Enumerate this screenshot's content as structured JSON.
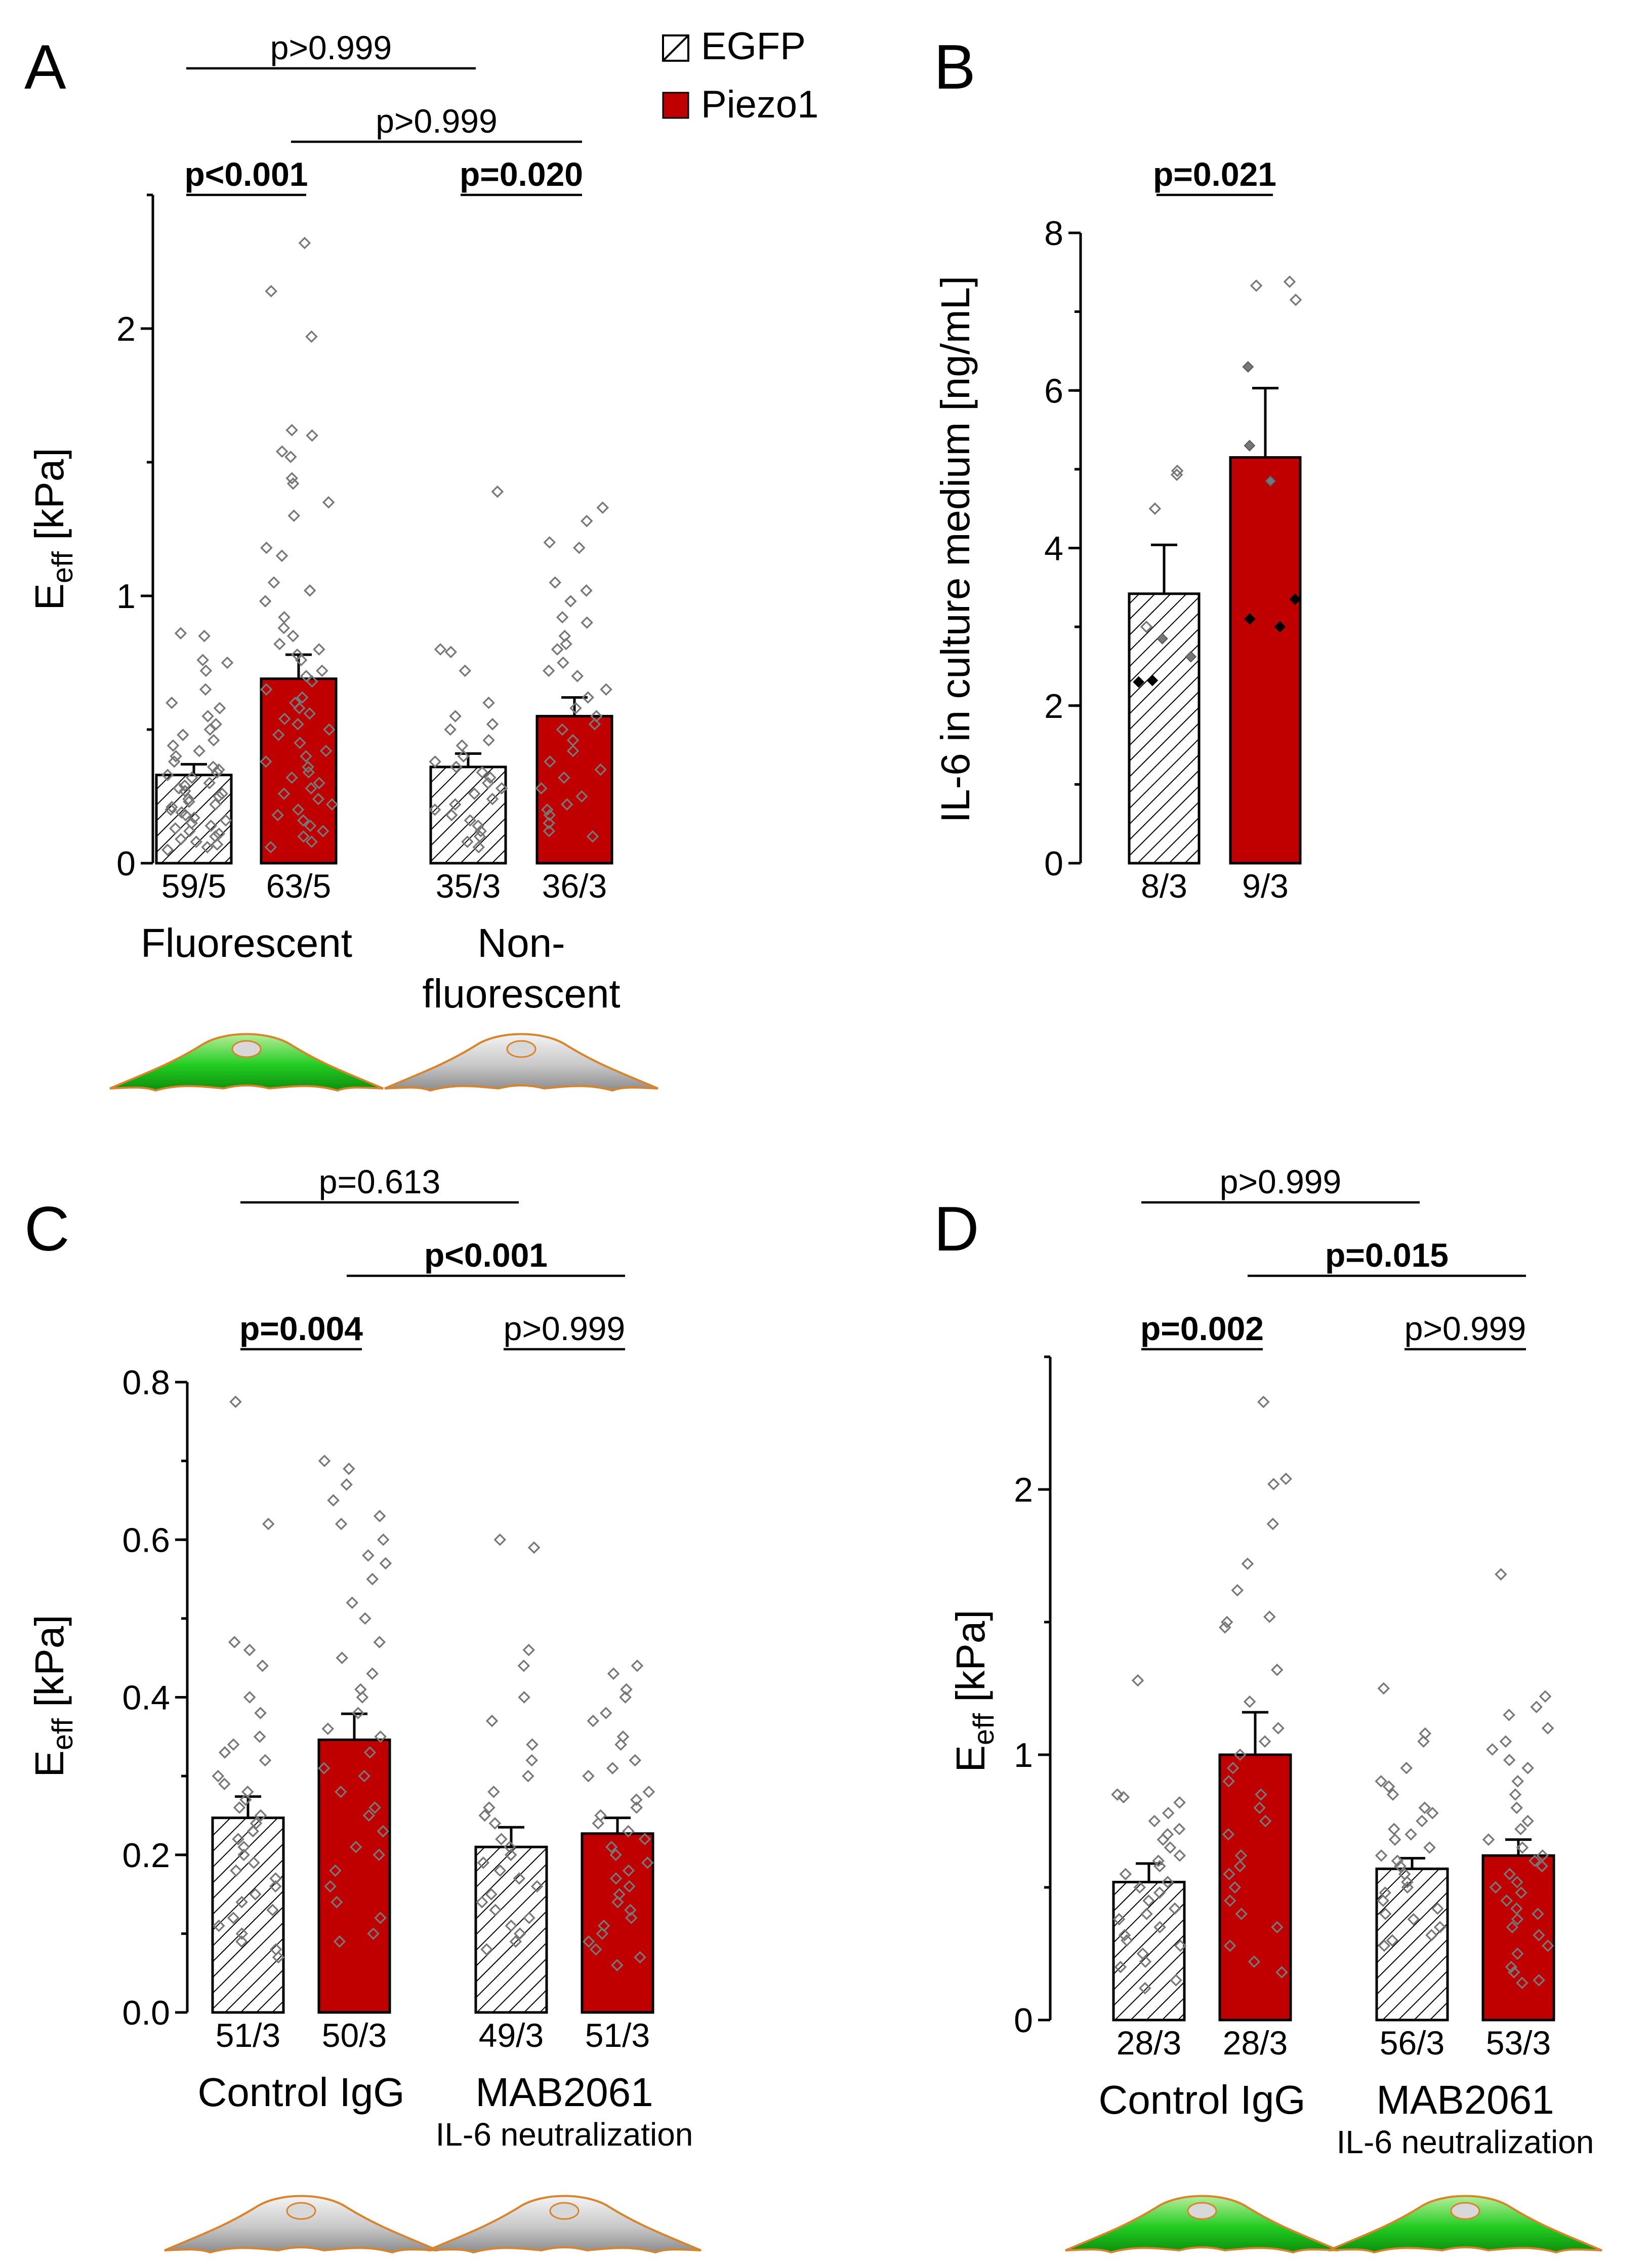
{
  "legend": {
    "egfp_label": "EGFP",
    "piezo_label": "Piezo1",
    "egfp_color": "#ffffff",
    "piezo_color": "#c00000"
  },
  "chart_data": [
    {
      "panel": "A",
      "type": "bar",
      "ylabel": "E",
      "ylabel_sub": "eff",
      "ylabel_unit": " [kPa]",
      "ylim": [
        0,
        2.5
      ],
      "yticks": [
        "0",
        "1",
        "2"
      ],
      "yticks_values": [
        0,
        1,
        2
      ],
      "minor_step": 0.5,
      "groups": [
        {
          "label_lines": [
            "Fluorescent"
          ],
          "cell_icon": "green-cell-icon"
        },
        {
          "label_lines": [
            "Non-",
            "fluorescent"
          ],
          "cell_icon": "grey-cell-icon"
        }
      ],
      "bars": [
        {
          "group": 0,
          "series": "EGFP",
          "value": 0.33,
          "sem": 0.04,
          "n_label": "59/5",
          "points": [
            0.85,
            0.86,
            0.76,
            0.75,
            0.72,
            0.65,
            0.6,
            0.58,
            0.55,
            0.52,
            0.5,
            0.48,
            0.46,
            0.44,
            0.42,
            0.4,
            0.38,
            0.36,
            0.35,
            0.34,
            0.33,
            0.32,
            0.3,
            0.29,
            0.28,
            0.27,
            0.26,
            0.25,
            0.24,
            0.23,
            0.22,
            0.21,
            0.2,
            0.19,
            0.18,
            0.17,
            0.16,
            0.15,
            0.14,
            0.13,
            0.12,
            0.11,
            0.1,
            0.09,
            0.08,
            0.07,
            0.06,
            0.05
          ]
        },
        {
          "group": 0,
          "series": "Piezo1",
          "value": 0.69,
          "sem": 0.09,
          "n_label": "63/5",
          "points": [
            2.32,
            2.14,
            1.97,
            1.62,
            1.6,
            1.54,
            1.52,
            1.44,
            1.42,
            1.35,
            1.3,
            1.18,
            1.15,
            1.05,
            1.02,
            0.98,
            0.92,
            0.88,
            0.85,
            0.82,
            0.8,
            0.78,
            0.76,
            0.72,
            0.7,
            0.68,
            0.65,
            0.62,
            0.6,
            0.58,
            0.56,
            0.54,
            0.52,
            0.5,
            0.48,
            0.45,
            0.42,
            0.4,
            0.38,
            0.36,
            0.34,
            0.32,
            0.3,
            0.28,
            0.26,
            0.24,
            0.22,
            0.2,
            0.18,
            0.16,
            0.14,
            0.12,
            0.1,
            0.08,
            0.06
          ]
        },
        {
          "group": 1,
          "series": "EGFP",
          "value": 0.36,
          "sem": 0.05,
          "n_label": "35/3",
          "points": [
            1.39,
            0.8,
            0.79,
            0.72,
            0.6,
            0.55,
            0.52,
            0.5,
            0.46,
            0.44,
            0.4,
            0.38,
            0.36,
            0.34,
            0.32,
            0.3,
            0.28,
            0.26,
            0.24,
            0.22,
            0.2,
            0.18,
            0.16,
            0.14,
            0.12,
            0.1,
            0.08,
            0.06
          ]
        },
        {
          "group": 1,
          "series": "Piezo1",
          "value": 0.55,
          "sem": 0.07,
          "n_label": "36/3",
          "points": [
            1.33,
            1.28,
            1.2,
            1.18,
            1.05,
            1.02,
            0.98,
            0.92,
            0.9,
            0.85,
            0.82,
            0.8,
            0.75,
            0.72,
            0.7,
            0.65,
            0.62,
            0.58,
            0.55,
            0.52,
            0.5,
            0.46,
            0.42,
            0.38,
            0.35,
            0.32,
            0.28,
            0.25,
            0.22,
            0.2,
            0.18,
            0.15,
            0.12,
            0.1
          ]
        }
      ],
      "comparisons": [
        {
          "text": "p<0.001",
          "bold": true,
          "from": 0,
          "to": 1,
          "level": 0
        },
        {
          "text": "p=0.020",
          "bold": true,
          "from": 2,
          "to": 3,
          "level": 0
        },
        {
          "text": "p>0.999",
          "bold": false,
          "from": 1,
          "to": 3,
          "level": 1
        },
        {
          "text": "p>0.999",
          "bold": false,
          "from": 0,
          "to": 2,
          "level": 2
        }
      ]
    },
    {
      "panel": "B",
      "type": "bar",
      "ylabel": "IL-6 in culture medium [ng/mL]",
      "ylim": [
        0,
        8
      ],
      "yticks": [
        "0",
        "2",
        "4",
        "6",
        "8"
      ],
      "yticks_values": [
        0,
        2,
        4,
        6,
        8
      ],
      "minor_step": 1,
      "groups": [],
      "bars": [
        {
          "group": 0,
          "series": "EGFP",
          "value": 3.42,
          "sem": 0.62,
          "n_label": "8/3",
          "points_light": [
            4.98,
            4.93,
            4.5,
            3.0
          ],
          "points_grey": [
            2.85,
            2.62
          ],
          "points_dark": [
            2.32,
            2.3
          ]
        },
        {
          "group": 0,
          "series": "Piezo1",
          "value": 5.15,
          "sem": 0.88,
          "n_label": "9/3",
          "points_light": [
            7.38,
            7.33,
            7.15
          ],
          "points_grey": [
            6.3,
            5.3,
            4.85
          ],
          "points_dark": [
            3.35,
            3.1,
            3.0
          ]
        }
      ],
      "comparisons": [
        {
          "text": "p=0.021",
          "bold": true,
          "from": 0,
          "to": 1,
          "level": 0
        }
      ]
    },
    {
      "panel": "C",
      "type": "bar",
      "ylabel": "E",
      "ylabel_sub": "eff",
      "ylabel_unit": " [kPa]",
      "ylim": [
        0,
        0.8
      ],
      "yticks": [
        "0.0",
        "0.2",
        "0.4",
        "0.6",
        "0.8"
      ],
      "yticks_values": [
        0,
        0.2,
        0.4,
        0.6,
        0.8
      ],
      "minor_step": 0.1,
      "groups": [
        {
          "label_lines": [
            "Control IgG"
          ],
          "cell_icon": "grey-cell-icon"
        },
        {
          "label_lines": [
            "MAB2061",
            "IL-6 neutralization"
          ],
          "cell_icon": "grey-cell-icon"
        }
      ],
      "bars": [
        {
          "group": 0,
          "series": "EGFP",
          "value": 0.247,
          "sem": 0.027,
          "n_label": "51/3",
          "points": [
            0.775,
            0.62,
            0.47,
            0.46,
            0.44,
            0.4,
            0.38,
            0.35,
            0.34,
            0.33,
            0.32,
            0.3,
            0.29,
            0.28,
            0.27,
            0.26,
            0.25,
            0.24,
            0.23,
            0.22,
            0.21,
            0.2,
            0.19,
            0.18,
            0.17,
            0.16,
            0.15,
            0.14,
            0.13,
            0.12,
            0.11,
            0.1,
            0.09,
            0.08,
            0.07
          ]
        },
        {
          "group": 0,
          "series": "Piezo1",
          "value": 0.346,
          "sem": 0.033,
          "n_label": "50/3",
          "points": [
            0.7,
            0.69,
            0.67,
            0.65,
            0.63,
            0.62,
            0.6,
            0.58,
            0.57,
            0.55,
            0.52,
            0.5,
            0.47,
            0.45,
            0.43,
            0.41,
            0.4,
            0.38,
            0.36,
            0.35,
            0.33,
            0.31,
            0.3,
            0.28,
            0.26,
            0.25,
            0.23,
            0.21,
            0.2,
            0.18,
            0.16,
            0.14,
            0.12,
            0.1,
            0.09
          ]
        },
        {
          "group": 1,
          "series": "EGFP",
          "value": 0.21,
          "sem": 0.025,
          "n_label": "49/3",
          "points": [
            0.6,
            0.59,
            0.46,
            0.44,
            0.4,
            0.37,
            0.34,
            0.32,
            0.3,
            0.28,
            0.26,
            0.25,
            0.24,
            0.22,
            0.21,
            0.2,
            0.19,
            0.18,
            0.17,
            0.16,
            0.15,
            0.14,
            0.13,
            0.12,
            0.11,
            0.1,
            0.09,
            0.08
          ]
        },
        {
          "group": 1,
          "series": "Piezo1",
          "value": 0.227,
          "sem": 0.02,
          "n_label": "51/3",
          "points": [
            0.44,
            0.43,
            0.41,
            0.4,
            0.38,
            0.37,
            0.35,
            0.34,
            0.32,
            0.31,
            0.3,
            0.28,
            0.27,
            0.26,
            0.25,
            0.24,
            0.23,
            0.22,
            0.21,
            0.2,
            0.19,
            0.18,
            0.17,
            0.16,
            0.15,
            0.14,
            0.13,
            0.12,
            0.11,
            0.1,
            0.09,
            0.08,
            0.07,
            0.06
          ]
        }
      ],
      "comparisons": [
        {
          "text": "p=0.004",
          "bold": true,
          "from": 0,
          "to": 1,
          "level": 0
        },
        {
          "text": "p>0.999",
          "bold": false,
          "from": 2,
          "to": 3,
          "level": 0
        },
        {
          "text": "p<0.001",
          "bold": true,
          "from": 1,
          "to": 3,
          "level": 1
        },
        {
          "text": "p=0.613",
          "bold": false,
          "from": 0,
          "to": 2,
          "level": 2
        }
      ]
    },
    {
      "panel": "D",
      "type": "bar",
      "ylabel": "E",
      "ylabel_sub": "eff",
      "ylabel_unit": " [kPa]",
      "ylim": [
        0,
        2.5
      ],
      "yticks": [
        "0",
        "1",
        "2"
      ],
      "yticks_values": [
        0,
        1,
        2
      ],
      "minor_step": 0.5,
      "groups": [
        {
          "label_lines": [
            "Control IgG"
          ],
          "cell_icon": "green-cell-icon"
        },
        {
          "label_lines": [
            "MAB2061",
            "IL-6 neutralization"
          ],
          "cell_icon": "green-cell-icon"
        }
      ],
      "bars": [
        {
          "group": 0,
          "series": "EGFP",
          "value": 0.52,
          "sem": 0.07,
          "n_label": "28/3",
          "points": [
            1.28,
            0.85,
            0.84,
            0.82,
            0.78,
            0.75,
            0.72,
            0.7,
            0.68,
            0.65,
            0.62,
            0.6,
            0.58,
            0.55,
            0.52,
            0.5,
            0.48,
            0.45,
            0.42,
            0.4,
            0.38,
            0.35,
            0.32,
            0.3,
            0.28,
            0.25,
            0.22,
            0.2,
            0.15,
            0.12
          ]
        },
        {
          "group": 0,
          "series": "Piezo1",
          "value": 1.0,
          "sem": 0.16,
          "n_label": "28/3",
          "points": [
            2.33,
            2.04,
            2.02,
            1.87,
            1.72,
            1.62,
            1.52,
            1.5,
            1.48,
            1.32,
            1.2,
            1.1,
            1.05,
            1.0,
            0.95,
            0.9,
            0.85,
            0.8,
            0.75,
            0.7,
            0.62,
            0.58,
            0.55,
            0.5,
            0.45,
            0.4,
            0.35,
            0.28,
            0.22,
            0.18
          ]
        },
        {
          "group": 1,
          "series": "EGFP",
          "value": 0.57,
          "sem": 0.04,
          "n_label": "56/3",
          "points": [
            1.25,
            1.08,
            1.05,
            0.95,
            0.9,
            0.88,
            0.85,
            0.8,
            0.78,
            0.75,
            0.72,
            0.7,
            0.68,
            0.65,
            0.62,
            0.6,
            0.58,
            0.55,
            0.52,
            0.5,
            0.48,
            0.45,
            0.42,
            0.4,
            0.38,
            0.35,
            0.32,
            0.3,
            0.28
          ]
        },
        {
          "group": 1,
          "series": "Piezo1",
          "value": 0.62,
          "sem": 0.06,
          "n_label": "53/3",
          "points": [
            1.68,
            1.22,
            1.18,
            1.15,
            1.1,
            1.05,
            1.02,
            0.98,
            0.95,
            0.9,
            0.85,
            0.8,
            0.75,
            0.72,
            0.68,
            0.65,
            0.62,
            0.6,
            0.58,
            0.55,
            0.52,
            0.5,
            0.48,
            0.45,
            0.42,
            0.4,
            0.38,
            0.35,
            0.32,
            0.28,
            0.25,
            0.2,
            0.18,
            0.15,
            0.14
          ]
        }
      ],
      "comparisons": [
        {
          "text": "p=0.002",
          "bold": true,
          "from": 0,
          "to": 1,
          "level": 0
        },
        {
          "text": "p>0.999",
          "bold": false,
          "from": 2,
          "to": 3,
          "level": 0
        },
        {
          "text": "p=0.015",
          "bold": true,
          "from": 1,
          "to": 3,
          "level": 1
        },
        {
          "text": "p>0.999",
          "bold": false,
          "from": 0,
          "to": 2,
          "level": 2
        }
      ]
    }
  ]
}
